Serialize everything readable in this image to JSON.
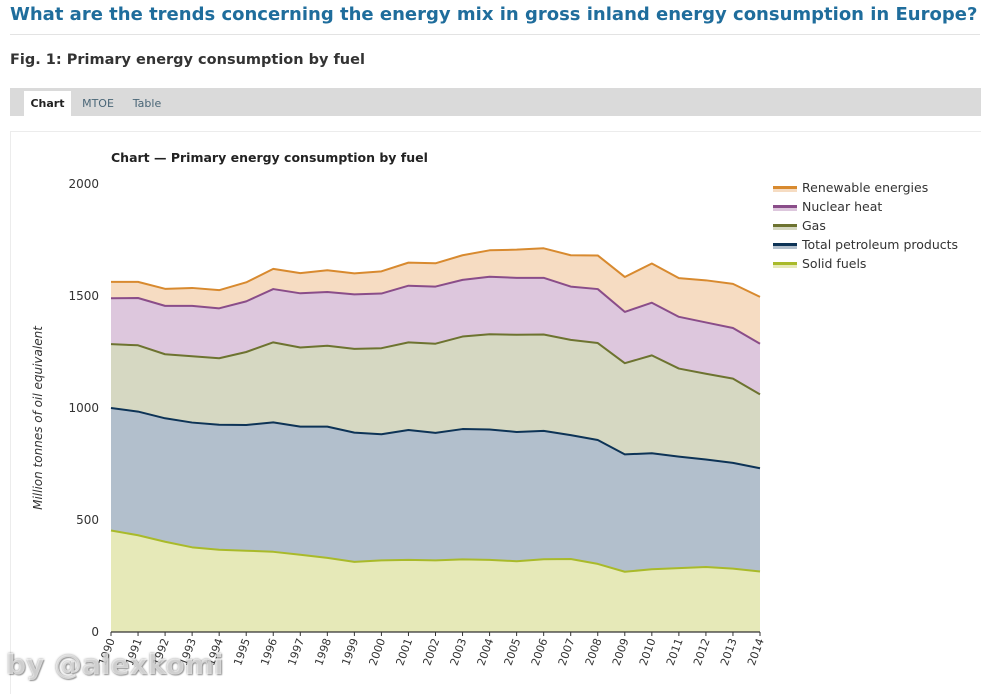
{
  "page": {
    "heading": "What are the trends concerning the energy mix in gross inland energy consumption in Europe?",
    "figure_title": "Fig. 1: Primary energy consumption by fuel",
    "tabs": [
      {
        "label": "Chart",
        "active": true
      },
      {
        "label": "MTOE",
        "active": false
      },
      {
        "label": "Table",
        "active": false
      }
    ],
    "watermark": "by @alexkomi"
  },
  "chart_data": {
    "type": "area",
    "stacked": true,
    "title": "Chart — Primary energy consumption by fuel",
    "xlabel": "",
    "ylabel": "Million tonnes of oil equivalent",
    "ylim": [
      0,
      2000
    ],
    "yticks": [
      0,
      500,
      1000,
      1500,
      2000
    ],
    "grid": false,
    "legend_position": "top-right",
    "categories": [
      "1990",
      "1991",
      "1992",
      "1993",
      "1994",
      "1995",
      "1996",
      "1997",
      "1998",
      "1999",
      "2000",
      "2001",
      "2002",
      "2003",
      "2004",
      "2005",
      "2006",
      "2007",
      "2008",
      "2009",
      "2010",
      "2011",
      "2012",
      "2013",
      "2014"
    ],
    "series": [
      {
        "name": "Solid fuels",
        "line_color": "#a9ba2a",
        "fill_color": "#e6e9b8",
        "values": [
          453,
          432,
          403,
          378,
          367,
          363,
          358,
          345,
          331,
          313,
          320,
          322,
          320,
          324,
          322,
          316,
          325,
          326,
          304,
          269,
          280,
          285,
          290,
          283,
          270
        ]
      },
      {
        "name": "Total petroleum products",
        "line_color": "#0d3356",
        "fill_color": "#b2bfcc",
        "values": [
          547,
          552,
          551,
          557,
          558,
          561,
          578,
          572,
          586,
          577,
          563,
          580,
          569,
          582,
          582,
          577,
          573,
          553,
          553,
          524,
          518,
          498,
          480,
          472,
          461
        ]
      },
      {
        "name": "Gas",
        "line_color": "#6d7330",
        "fill_color": "#d6d8c2",
        "values": [
          285,
          296,
          286,
          296,
          297,
          326,
          357,
          353,
          361,
          374,
          384,
          391,
          398,
          413,
          425,
          434,
          430,
          425,
          433,
          407,
          437,
          393,
          383,
          376,
          330
        ]
      },
      {
        "name": "Nuclear heat",
        "line_color": "#8a4d89",
        "fill_color": "#ddc7dd",
        "values": [
          205,
          211,
          216,
          225,
          223,
          226,
          238,
          242,
          240,
          243,
          244,
          253,
          255,
          253,
          257,
          254,
          253,
          238,
          241,
          229,
          235,
          231,
          229,
          226,
          226
        ]
      },
      {
        "name": "Renewable energies",
        "line_color": "#d88a2f",
        "fill_color": "#f6dcc2",
        "values": [
          73,
          72,
          76,
          80,
          81,
          85,
          90,
          90,
          97,
          94,
          99,
          103,
          104,
          110,
          118,
          126,
          132,
          140,
          150,
          156,
          175,
          173,
          188,
          197,
          209
        ]
      }
    ]
  }
}
